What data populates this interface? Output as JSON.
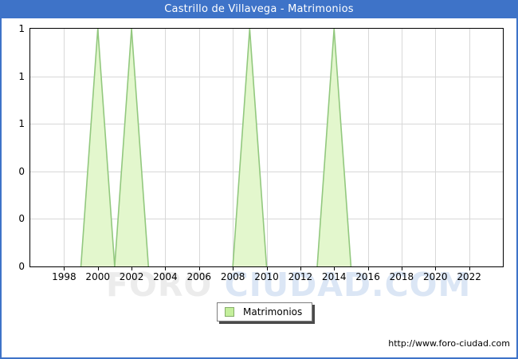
{
  "window": {
    "title": "Castrillo de Villavega - Matrimonios"
  },
  "colors": {
    "titlebar": "#3e73c8",
    "frame_border": "#3e73c8",
    "plot_border": "#000000",
    "grid": "#d8d8d8",
    "area_fill": "#e3f7cd",
    "area_stroke": "#92c87e",
    "legend_swatch": "#c4ef9c",
    "legend_swatch_border": "#84ad67",
    "watermark_gray": "#ececec",
    "watermark_blue": "#dbe6f5"
  },
  "chart_data": {
    "type": "area",
    "title": "Castrillo de Villavega - Matrimonios",
    "series_name": "Matrimonios",
    "x": [
      1996,
      1997,
      1998,
      1999,
      2000,
      2001,
      2002,
      2003,
      2004,
      2005,
      2006,
      2007,
      2008,
      2009,
      2010,
      2011,
      2012,
      2013,
      2014,
      2015,
      2016,
      2017,
      2018,
      2019,
      2020,
      2021,
      2022,
      2023
    ],
    "values": [
      0,
      0,
      0,
      0,
      1,
      0,
      1,
      0,
      0,
      0,
      0,
      0,
      0,
      1,
      0,
      0,
      0,
      0,
      1,
      0,
      0,
      0,
      0,
      0,
      0,
      0,
      0,
      0
    ],
    "xlim": [
      1996,
      2024
    ],
    "ylim": [
      0,
      1
    ],
    "x_ticks": [
      1998,
      2000,
      2002,
      2004,
      2006,
      2008,
      2010,
      2012,
      2014,
      2016,
      2018,
      2020,
      2022
    ],
    "y_ticks": [
      {
        "value": 0.0,
        "label": "0"
      },
      {
        "value": 0.2,
        "label": "0"
      },
      {
        "value": 0.4,
        "label": "0"
      },
      {
        "value": 0.6,
        "label": "1"
      },
      {
        "value": 0.8,
        "label": "1"
      },
      {
        "value": 1.0,
        "label": "1"
      }
    ],
    "grid": true,
    "legend_position": "bottom-center"
  },
  "legend": {
    "label": "Matrimonios"
  },
  "watermark": {
    "part1": "FORO ",
    "part2": "CIUDAD.COM"
  },
  "footer": {
    "url": "http://www.foro-ciudad.com"
  }
}
